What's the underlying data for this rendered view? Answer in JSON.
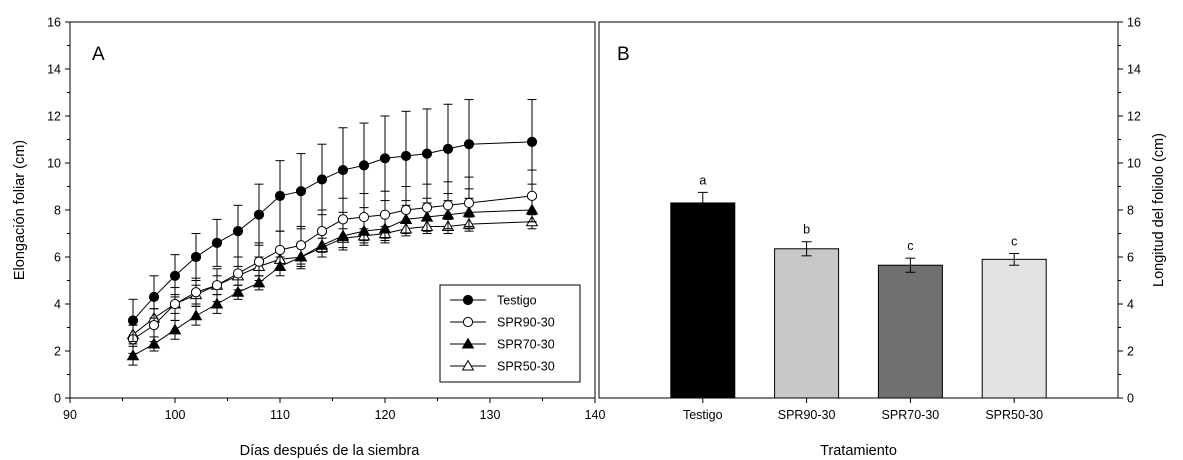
{
  "chart_data": [
    {
      "type": "line",
      "panel_label": "A",
      "xlabel": "Días después de la siembra",
      "ylabel": "Elongación foliar (cm)",
      "xlim": [
        90,
        140
      ],
      "ylim": [
        0,
        16
      ],
      "xticks": [
        90,
        100,
        110,
        120,
        130,
        140
      ],
      "yticks": [
        0,
        2,
        4,
        6,
        8,
        10,
        12,
        14,
        16
      ],
      "x": [
        96,
        98,
        100,
        102,
        104,
        106,
        108,
        110,
        112,
        114,
        116,
        118,
        120,
        122,
        124,
        126,
        128,
        134
      ],
      "legend_position": "bottom-right",
      "grid": false,
      "series": [
        {
          "name": "Testigo",
          "marker": "filled-circle",
          "values": [
            3.3,
            4.3,
            5.2,
            6.0,
            6.6,
            7.1,
            7.8,
            8.6,
            8.8,
            9.3,
            9.7,
            9.9,
            10.2,
            10.3,
            10.4,
            10.6,
            10.8,
            10.9
          ],
          "error": [
            0.9,
            0.9,
            0.9,
            1.0,
            1.0,
            1.1,
            1.3,
            1.5,
            1.6,
            1.5,
            1.8,
            1.8,
            1.8,
            1.9,
            1.9,
            1.9,
            1.9,
            1.8
          ]
        },
        {
          "name": "SPR90-30",
          "marker": "open-circle",
          "values": [
            2.5,
            3.1,
            4.0,
            4.5,
            4.8,
            5.3,
            5.8,
            6.3,
            6.5,
            7.1,
            7.6,
            7.7,
            7.8,
            8.0,
            8.1,
            8.2,
            8.3,
            8.6
          ],
          "error": [
            0.6,
            0.7,
            0.7,
            0.6,
            0.7,
            0.7,
            0.8,
            0.8,
            0.8,
            0.9,
            0.9,
            1.0,
            1.0,
            1.0,
            1.0,
            1.0,
            1.1,
            1.1
          ]
        },
        {
          "name": "SPR70-30",
          "marker": "filled-triangle",
          "values": [
            1.8,
            2.3,
            2.9,
            3.5,
            4.0,
            4.5,
            4.9,
            5.6,
            6.0,
            6.5,
            6.9,
            7.1,
            7.2,
            7.6,
            7.7,
            7.8,
            7.9,
            8.0
          ],
          "error": [
            0.4,
            0.3,
            0.4,
            0.4,
            0.4,
            0.3,
            0.3,
            0.4,
            0.5,
            0.5,
            0.6,
            0.6,
            0.6,
            0.6,
            0.6,
            0.6,
            0.6,
            0.5
          ]
        },
        {
          "name": "SPR50-30",
          "marker": "open-triangle",
          "values": [
            2.7,
            3.4,
            4.0,
            4.4,
            4.8,
            5.2,
            5.6,
            5.9,
            6.0,
            6.4,
            6.8,
            6.9,
            7.0,
            7.2,
            7.3,
            7.3,
            7.4,
            7.5
          ],
          "error": [
            0.4,
            0.4,
            0.4,
            0.4,
            0.4,
            0.4,
            0.4,
            0.4,
            0.4,
            0.4,
            0.4,
            0.3,
            0.3,
            0.3,
            0.3,
            0.3,
            0.3,
            0.3
          ]
        }
      ]
    },
    {
      "type": "bar",
      "panel_label": "B",
      "xlabel": "Tratamiento",
      "ylabel": "Longitud del foliolo (cm)",
      "ylim": [
        0,
        16
      ],
      "yticks": [
        0,
        2,
        4,
        6,
        8,
        10,
        12,
        14,
        16
      ],
      "categories": [
        "Testigo",
        "SPR90-30",
        "SPR70-30",
        "SPR50-30"
      ],
      "values": [
        8.3,
        6.35,
        5.65,
        5.9
      ],
      "error": [
        0.45,
        0.3,
        0.3,
        0.25
      ],
      "significance_letters": [
        "a",
        "b",
        "c",
        "c"
      ],
      "colors": [
        "#000000",
        "#c8c8c8",
        "#707070",
        "#e2e2e2"
      ],
      "grid": false
    }
  ]
}
